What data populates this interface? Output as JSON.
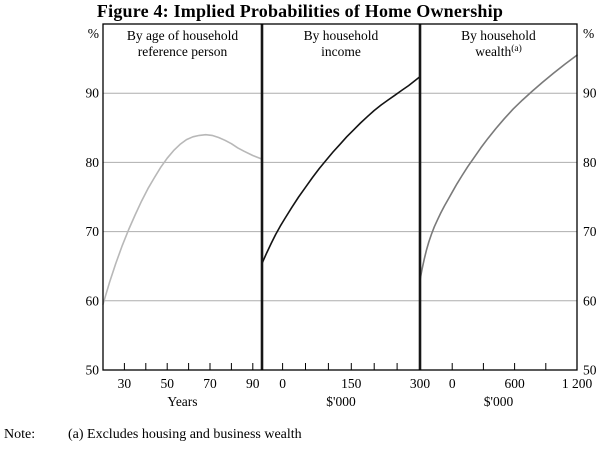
{
  "figure": {
    "title": "Figure 4: Implied Probabilities of Home Ownership",
    "note_label": "Note:",
    "note_text": "(a) Excludes housing and business wealth"
  },
  "chart_data": {
    "type": "line",
    "title": "Figure 4: Implied Probabilities of Home Ownership",
    "description": "Three-panel line chart of implied probabilities of home ownership (per cent), by age of household reference person, by household income, and by household wealth.",
    "y_axis": {
      "unit": "%",
      "min": 50,
      "max": 100,
      "tick_labels": [
        "90",
        "80",
        "70",
        "60",
        "50"
      ],
      "tick_values": [
        90,
        80,
        70,
        60,
        50
      ],
      "gridlines": [
        60,
        70,
        80,
        90
      ],
      "labels_on_both_sides": true
    },
    "colors": {
      "grid": "#aeaeae",
      "frame": "#000000",
      "separator": "#161616"
    },
    "legend_position": "none",
    "panels": [
      {
        "id": "age",
        "header_lines": [
          "By age of household",
          "reference person"
        ],
        "header_superscript": "",
        "xlabel": "Years",
        "xmin": 20,
        "xmax": 94.3,
        "minor_ticks": [
          30,
          40,
          50,
          60,
          70,
          80,
          90
        ],
        "labeled_ticks": [
          {
            "v": 30,
            "label": "30"
          },
          {
            "v": 50,
            "label": "50"
          },
          {
            "v": 70,
            "label": "70"
          },
          {
            "v": 90,
            "label": "90"
          }
        ],
        "color": "#b8b8b8",
        "points": [
          [
            20,
            59.5
          ],
          [
            23,
            62.6
          ],
          [
            26,
            65.4
          ],
          [
            29,
            68.0
          ],
          [
            32,
            70.3
          ],
          [
            35,
            72.4
          ],
          [
            38,
            74.4
          ],
          [
            41,
            76.2
          ],
          [
            44,
            77.8
          ],
          [
            47,
            79.3
          ],
          [
            50,
            80.6
          ],
          [
            53,
            81.7
          ],
          [
            56,
            82.6
          ],
          [
            59,
            83.3
          ],
          [
            62,
            83.7
          ],
          [
            65,
            83.9
          ],
          [
            68,
            84.0
          ],
          [
            71,
            83.9
          ],
          [
            74,
            83.6
          ],
          [
            77,
            83.2
          ],
          [
            80,
            82.7
          ],
          [
            83,
            82.1
          ],
          [
            86,
            81.6
          ],
          [
            90,
            81.0
          ],
          [
            94,
            80.5
          ]
        ]
      },
      {
        "id": "income",
        "header_lines": [
          "By household",
          "income"
        ],
        "header_superscript": "",
        "xlabel": "$'000",
        "xmin": -45,
        "xmax": 300,
        "minor_ticks": [
          0,
          50,
          100,
          150,
          200,
          250,
          300
        ],
        "labeled_ticks": [
          {
            "v": 0,
            "label": "0"
          },
          {
            "v": 150,
            "label": "150"
          },
          {
            "v": 300,
            "label": "300"
          }
        ],
        "color": "#141414",
        "points": [
          [
            -45,
            65.4
          ],
          [
            -35,
            66.9
          ],
          [
            -25,
            68.3
          ],
          [
            -15,
            69.6
          ],
          [
            -5,
            70.8
          ],
          [
            5,
            71.9
          ],
          [
            20,
            73.5
          ],
          [
            35,
            75.0
          ],
          [
            50,
            76.4
          ],
          [
            65,
            77.8
          ],
          [
            80,
            79.1
          ],
          [
            95,
            80.3
          ],
          [
            110,
            81.5
          ],
          [
            125,
            82.6
          ],
          [
            140,
            83.7
          ],
          [
            155,
            84.7
          ],
          [
            170,
            85.7
          ],
          [
            185,
            86.6
          ],
          [
            200,
            87.5
          ],
          [
            215,
            88.3
          ],
          [
            230,
            89.0
          ],
          [
            245,
            89.7
          ],
          [
            260,
            90.4
          ],
          [
            275,
            91.1
          ],
          [
            287,
            91.7
          ],
          [
            300,
            92.4
          ]
        ]
      },
      {
        "id": "wealth",
        "header_lines": [
          "By household",
          "wealth"
        ],
        "header_superscript": "(a)",
        "xlabel": "$'000",
        "xmin": -310,
        "xmax": 1200,
        "minor_ticks": [
          0,
          300,
          600,
          900,
          1200
        ],
        "labeled_ticks": [
          {
            "v": 0,
            "label": "0"
          },
          {
            "v": 600,
            "label": "600"
          },
          {
            "v": 1200,
            "label": "1 200"
          }
        ],
        "color": "#7a7a7a",
        "points": [
          [
            -310,
            63.0
          ],
          [
            -290,
            64.6
          ],
          [
            -270,
            66.0
          ],
          [
            -248,
            67.3
          ],
          [
            -225,
            68.5
          ],
          [
            -200,
            69.6
          ],
          [
            -172,
            70.7
          ],
          [
            -142,
            71.7
          ],
          [
            -110,
            72.7
          ],
          [
            -75,
            73.7
          ],
          [
            -38,
            74.7
          ],
          [
            0,
            75.7
          ],
          [
            45,
            76.9
          ],
          [
            95,
            78.1
          ],
          [
            150,
            79.4
          ],
          [
            210,
            80.7
          ],
          [
            275,
            82.1
          ],
          [
            345,
            83.5
          ],
          [
            420,
            84.9
          ],
          [
            500,
            86.3
          ],
          [
            585,
            87.7
          ],
          [
            675,
            89.0
          ],
          [
            770,
            90.3
          ],
          [
            870,
            91.6
          ],
          [
            975,
            92.9
          ],
          [
            1085,
            94.2
          ],
          [
            1200,
            95.5
          ]
        ]
      }
    ]
  }
}
